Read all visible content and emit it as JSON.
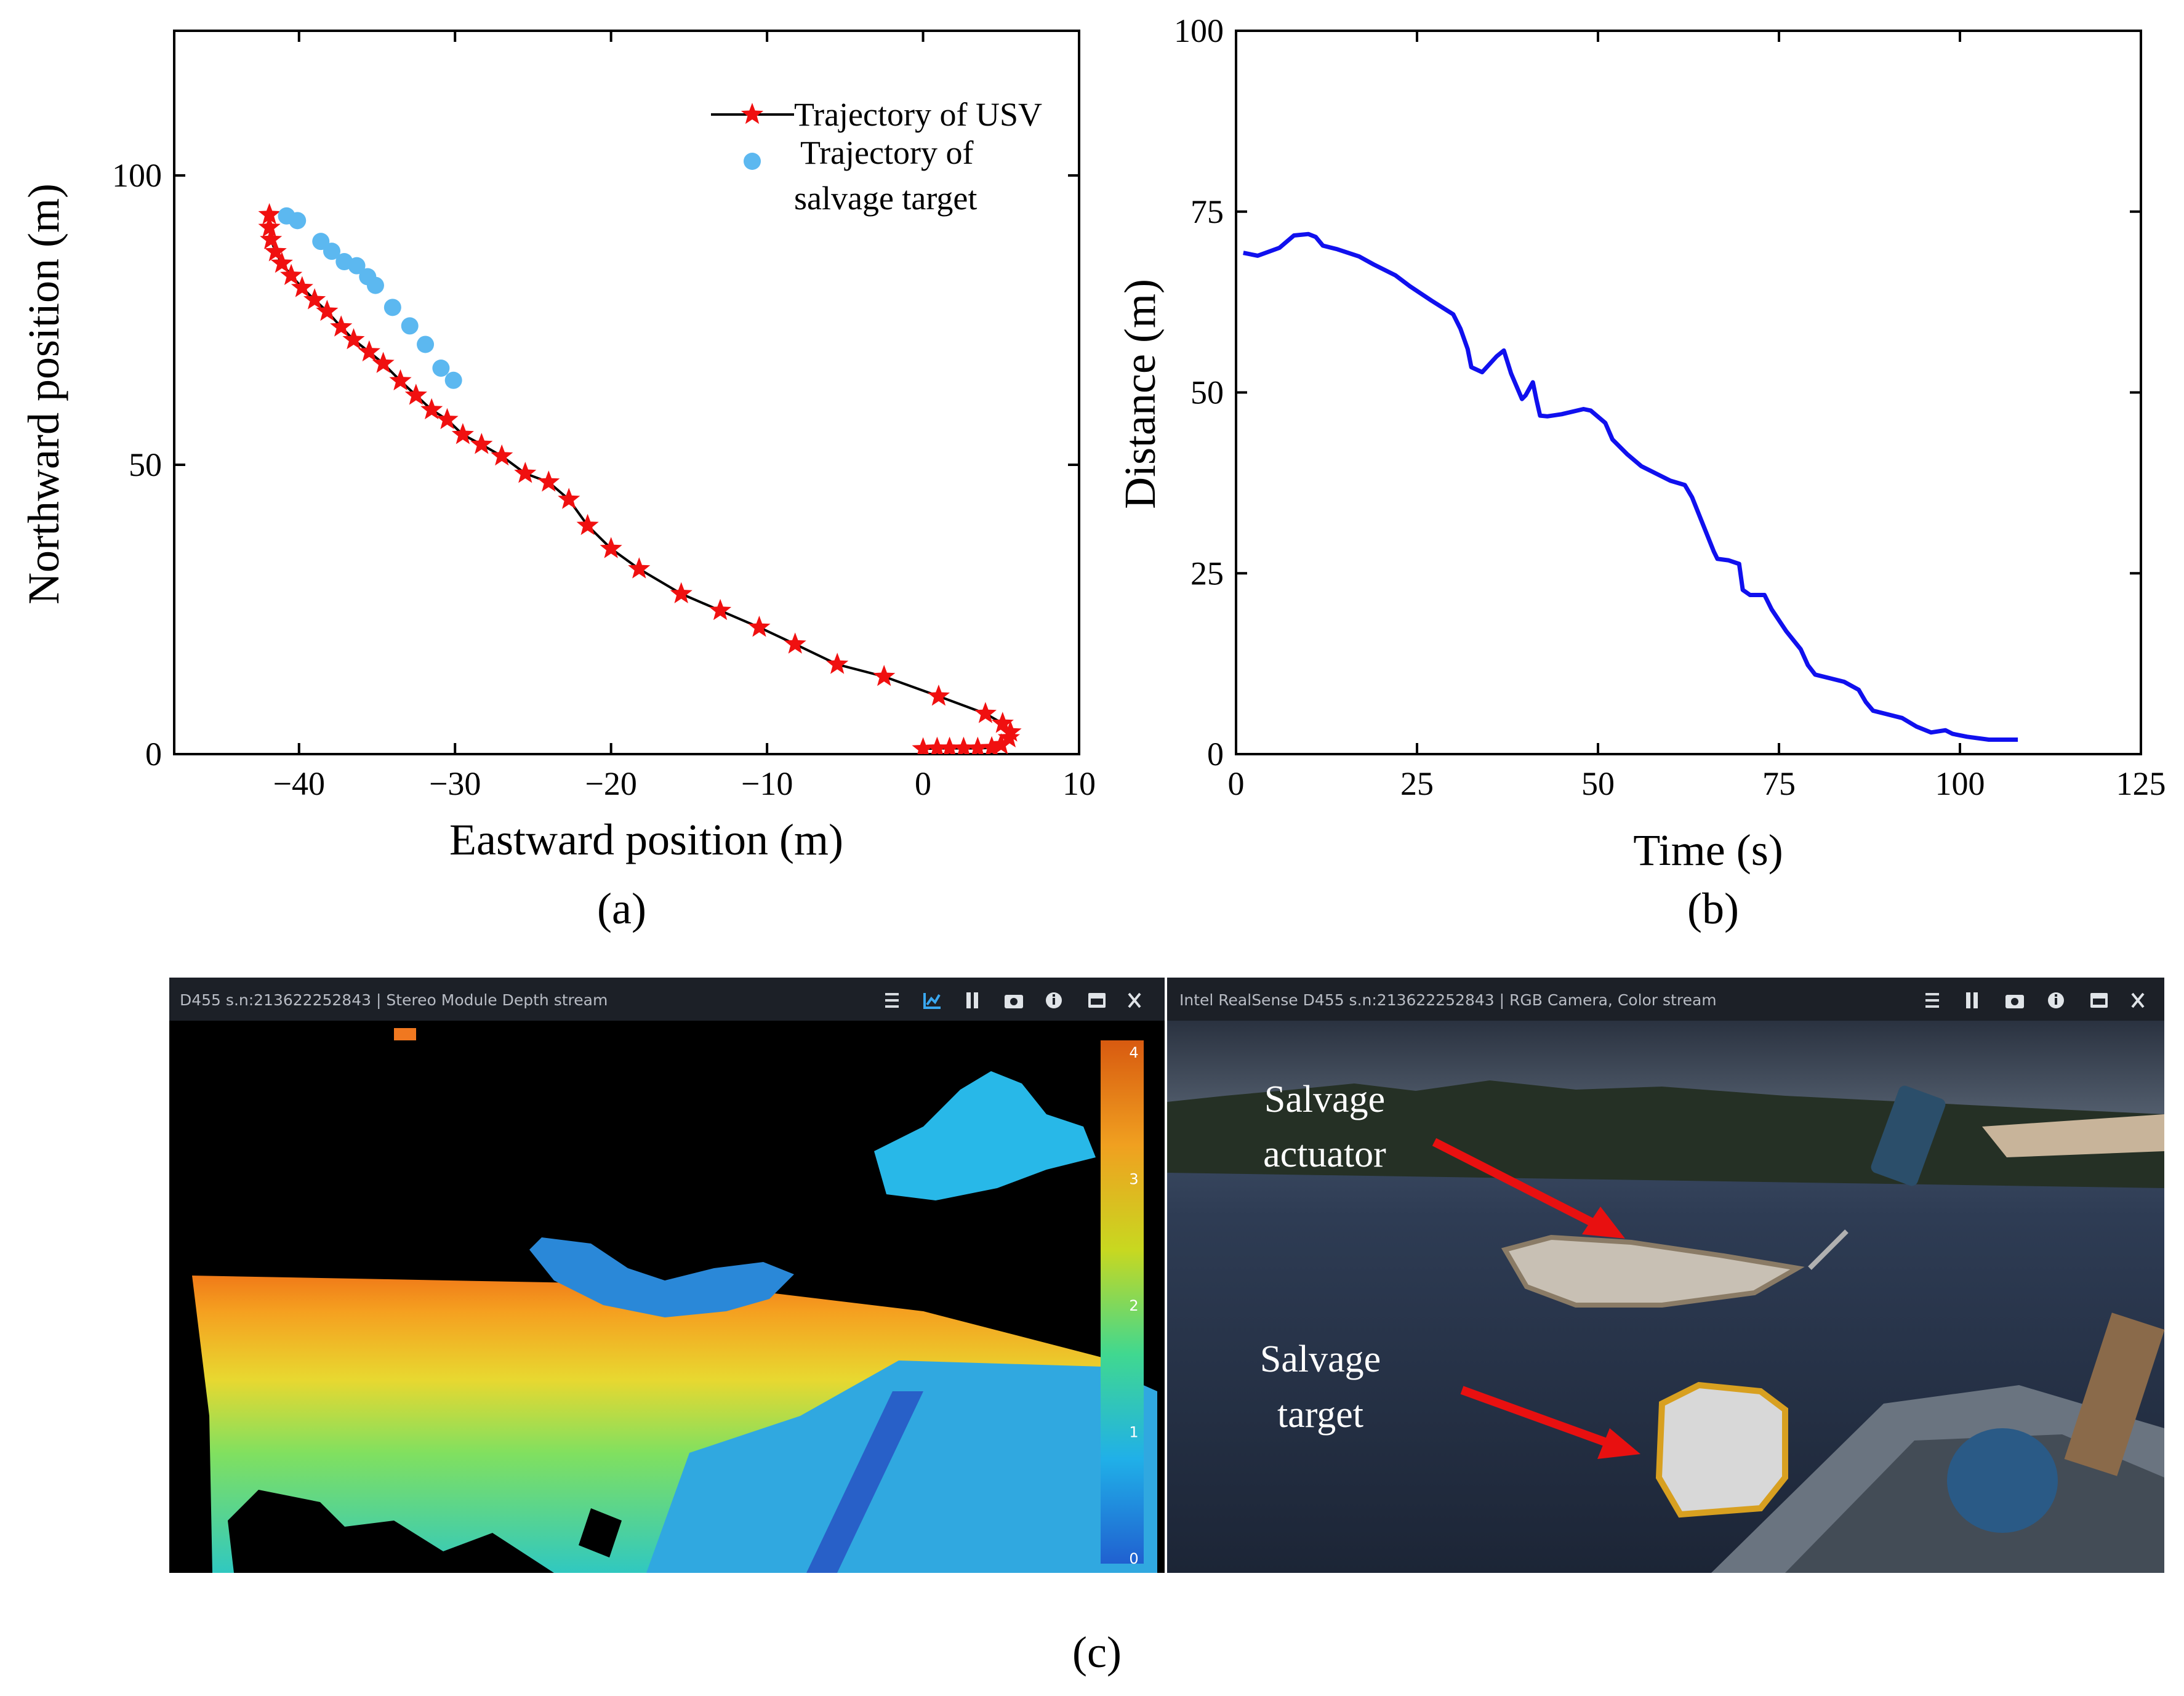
{
  "chart_data": [
    {
      "type": "line",
      "panel_label": "(a)",
      "xlabel": "Eastward position (m)",
      "ylabel": "Northward position (m)",
      "xlim": [
        -48,
        10
      ],
      "ylim": [
        0,
        125
      ],
      "xticks": [
        -40,
        -30,
        -20,
        -10,
        0,
        10
      ],
      "xtick_labels": [
        "−40",
        "−30",
        "−20",
        "−10",
        "0",
        "10"
      ],
      "yticks": [
        0,
        50,
        100
      ],
      "ytick_labels": [
        "0",
        "50",
        "100"
      ],
      "legend_position": "top-right",
      "series": [
        {
          "name": "Trajectory of USV",
          "style": "line with star markers",
          "line_color": "#000000",
          "marker_color": "#f01010",
          "points": [
            [
              0.0,
              0.9
            ],
            [
              0.9,
              1.0
            ],
            [
              1.7,
              1.0
            ],
            [
              2.6,
              1.0
            ],
            [
              3.5,
              1.0
            ],
            [
              4.4,
              1.1
            ],
            [
              5.0,
              1.6
            ],
            [
              5.5,
              2.8
            ],
            [
              5.6,
              3.8
            ],
            [
              5.1,
              5.3
            ],
            [
              4.0,
              7.0
            ],
            [
              1.0,
              10.0
            ],
            [
              -2.5,
              13.4
            ],
            [
              -5.5,
              15.5
            ],
            [
              -8.2,
              19.0
            ],
            [
              -10.5,
              21.9
            ],
            [
              -13.0,
              24.8
            ],
            [
              -15.5,
              27.7
            ],
            [
              -18.2,
              32.0
            ],
            [
              -20.0,
              35.5
            ],
            [
              -21.5,
              39.5
            ],
            [
              -22.7,
              44.0
            ],
            [
              -24.0,
              47.0
            ],
            [
              -25.5,
              48.5
            ],
            [
              -27.0,
              51.5
            ],
            [
              -28.3,
              53.5
            ],
            [
              -29.5,
              55.2
            ],
            [
              -30.5,
              57.8
            ],
            [
              -31.5,
              59.5
            ],
            [
              -32.5,
              62.0
            ],
            [
              -33.5,
              64.5
            ],
            [
              -34.6,
              67.5
            ],
            [
              -35.5,
              69.5
            ],
            [
              -36.5,
              71.6
            ],
            [
              -37.3,
              73.8
            ],
            [
              -38.2,
              76.5
            ],
            [
              -39.0,
              78.5
            ],
            [
              -39.8,
              80.6
            ],
            [
              -40.5,
              82.7
            ],
            [
              -41.1,
              84.8
            ],
            [
              -41.5,
              86.8
            ],
            [
              -41.8,
              88.9
            ],
            [
              -41.9,
              91.0
            ],
            [
              -41.9,
              93.2
            ]
          ]
        },
        {
          "name": "Trajectory of\nsalvage target",
          "legend_lines": [
            "Trajectory of",
            "salvage target"
          ],
          "style": "scatter",
          "marker_color": "#5cb8f0",
          "points": [
            [
              -40.8,
              93.0
            ],
            [
              -40.1,
              92.2
            ],
            [
              -38.6,
              88.6
            ],
            [
              -37.9,
              86.9
            ],
            [
              -37.1,
              85.1
            ],
            [
              -36.3,
              84.4
            ],
            [
              -35.6,
              82.5
            ],
            [
              -35.1,
              81.0
            ],
            [
              -34.0,
              77.2
            ],
            [
              -32.9,
              74.0
            ],
            [
              -31.9,
              70.8
            ],
            [
              -30.9,
              66.7
            ],
            [
              -30.1,
              64.6
            ]
          ]
        }
      ]
    },
    {
      "type": "line",
      "panel_label": "(b)",
      "xlabel": "Time (s)",
      "ylabel": "Distance (m)",
      "xlim": [
        0,
        125
      ],
      "ylim": [
        0,
        100
      ],
      "xticks": [
        0,
        25,
        50,
        75,
        100,
        125
      ],
      "yticks": [
        0,
        25,
        50,
        75,
        100
      ],
      "series": [
        {
          "name": "Distance",
          "color": "#1010ee",
          "points": [
            [
              1,
              69.3
            ],
            [
              3,
              68.9
            ],
            [
              6,
              70.0
            ],
            [
              8,
              71.7
            ],
            [
              10,
              71.9
            ],
            [
              11,
              71.5
            ],
            [
              12,
              70.3
            ],
            [
              14,
              69.8
            ],
            [
              17,
              68.8
            ],
            [
              19,
              67.7
            ],
            [
              22,
              66.2
            ],
            [
              24,
              64.7
            ],
            [
              27,
              62.7
            ],
            [
              30,
              60.8
            ],
            [
              31,
              58.8
            ],
            [
              32,
              56.0
            ],
            [
              32.5,
              53.5
            ],
            [
              34,
              52.8
            ],
            [
              36,
              55.0
            ],
            [
              37,
              55.8
            ],
            [
              38,
              52.6
            ],
            [
              39.5,
              49.1
            ],
            [
              40,
              49.6
            ],
            [
              41,
              51.4
            ],
            [
              41.5,
              49.0
            ],
            [
              42,
              46.8
            ],
            [
              43,
              46.7
            ],
            [
              45,
              47.0
            ],
            [
              48,
              47.7
            ],
            [
              49,
              47.5
            ],
            [
              51,
              45.8
            ],
            [
              52,
              43.5
            ],
            [
              54,
              41.5
            ],
            [
              56,
              39.8
            ],
            [
              58,
              38.8
            ],
            [
              60,
              37.8
            ],
            [
              62,
              37.2
            ],
            [
              63,
              35.5
            ],
            [
              65,
              30.5
            ],
            [
              66,
              28.0
            ],
            [
              66.5,
              27.0
            ],
            [
              68,
              26.8
            ],
            [
              69.5,
              26.3
            ],
            [
              70,
              22.7
            ],
            [
              71,
              22.0
            ],
            [
              73,
              22.0
            ],
            [
              74,
              20.0
            ],
            [
              76,
              17.0
            ],
            [
              78,
              14.5
            ],
            [
              79,
              12.3
            ],
            [
              80,
              11.0
            ],
            [
              82,
              10.5
            ],
            [
              84,
              10.0
            ],
            [
              86,
              8.9
            ],
            [
              87,
              7.2
            ],
            [
              88,
              6.0
            ],
            [
              90,
              5.5
            ],
            [
              92,
              5.0
            ],
            [
              94,
              3.8
            ],
            [
              96,
              3.0
            ],
            [
              98,
              3.3
            ],
            [
              99,
              2.8
            ],
            [
              101,
              2.4
            ],
            [
              104,
              2.0
            ],
            [
              108,
              2.0
            ]
          ]
        }
      ]
    }
  ],
  "figure": {
    "label_c": "(c)",
    "depth_panel": {
      "title": "D455 s.n:213622252843 | Stereo Module Depth stream",
      "colorbar_ticks": [
        "4",
        "3",
        "2",
        "1",
        "0"
      ]
    },
    "rgb_panel": {
      "title": "Intel RealSense D455 s.n:213622252843 | RGB Camera, Color stream",
      "annotation_actuator": [
        "Salvage",
        "actuator"
      ],
      "annotation_target": [
        "Salvage",
        "target"
      ]
    },
    "colors": {
      "accent_red": "#e81010",
      "toolbar_bg": "#1c2027"
    }
  }
}
